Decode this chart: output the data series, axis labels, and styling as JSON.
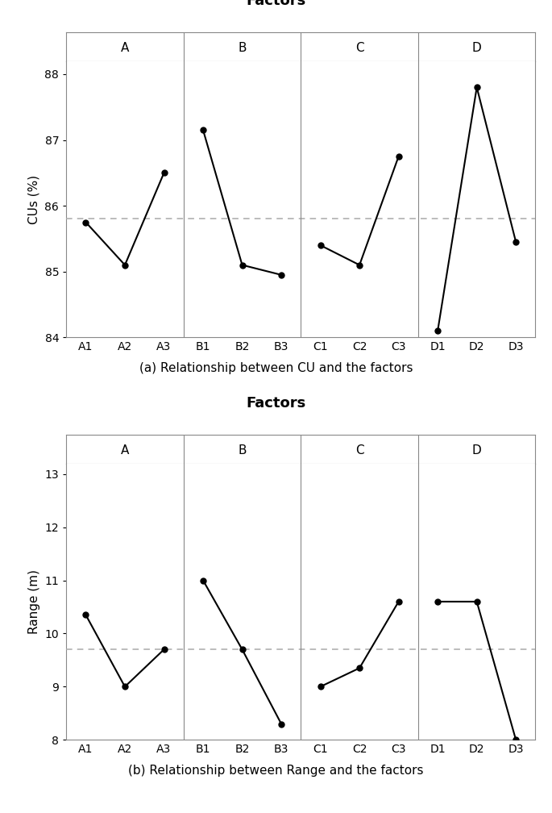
{
  "chart_a": {
    "title": "Factors",
    "xlabel_groups": [
      "A",
      "B",
      "C",
      "D"
    ],
    "x_labels": [
      "A1",
      "A2",
      "A3",
      "B1",
      "B2",
      "B3",
      "C1",
      "C2",
      "C3",
      "D1",
      "D2",
      "D3"
    ],
    "y_values": [
      85.75,
      85.1,
      86.5,
      87.15,
      85.1,
      84.95,
      85.4,
      85.1,
      86.75,
      84.1,
      87.8,
      85.45
    ],
    "ylabel": "CUs (%)",
    "ylim": [
      84,
      88.2
    ],
    "yticks": [
      84,
      85,
      86,
      87,
      88
    ],
    "dashed_line": 85.8,
    "caption": "(a) Relationship between CU and the factors"
  },
  "chart_b": {
    "title": "Factors",
    "xlabel_groups": [
      "A",
      "B",
      "C",
      "D"
    ],
    "x_labels": [
      "A1",
      "A2",
      "A3",
      "B1",
      "B2",
      "B3",
      "C1",
      "C2",
      "C3",
      "D1",
      "D2",
      "D3"
    ],
    "y_values": [
      10.35,
      9.0,
      9.7,
      11.0,
      9.7,
      8.3,
      9.0,
      9.35,
      10.6,
      10.6,
      10.6,
      8.0
    ],
    "ylabel": "Range (m)",
    "ylim": [
      8,
      13.2
    ],
    "yticks": [
      8,
      9,
      10,
      11,
      12,
      13
    ],
    "dashed_line": 9.7,
    "caption": "(b) Relationship between Range and the factors"
  },
  "group_dividers": [
    2.5,
    5.5,
    8.5
  ],
  "group_centers": [
    1,
    4,
    7,
    10
  ],
  "line_color": "#000000",
  "dashed_color": "#aaaaaa",
  "border_color": "#888888",
  "marker": "o",
  "markersize": 5,
  "linewidth": 1.5,
  "group_label_fontsize": 11,
  "axis_label_fontsize": 11,
  "title_fontsize": 13,
  "caption_fontsize": 11,
  "tick_fontsize": 10,
  "background_color": "#ffffff"
}
